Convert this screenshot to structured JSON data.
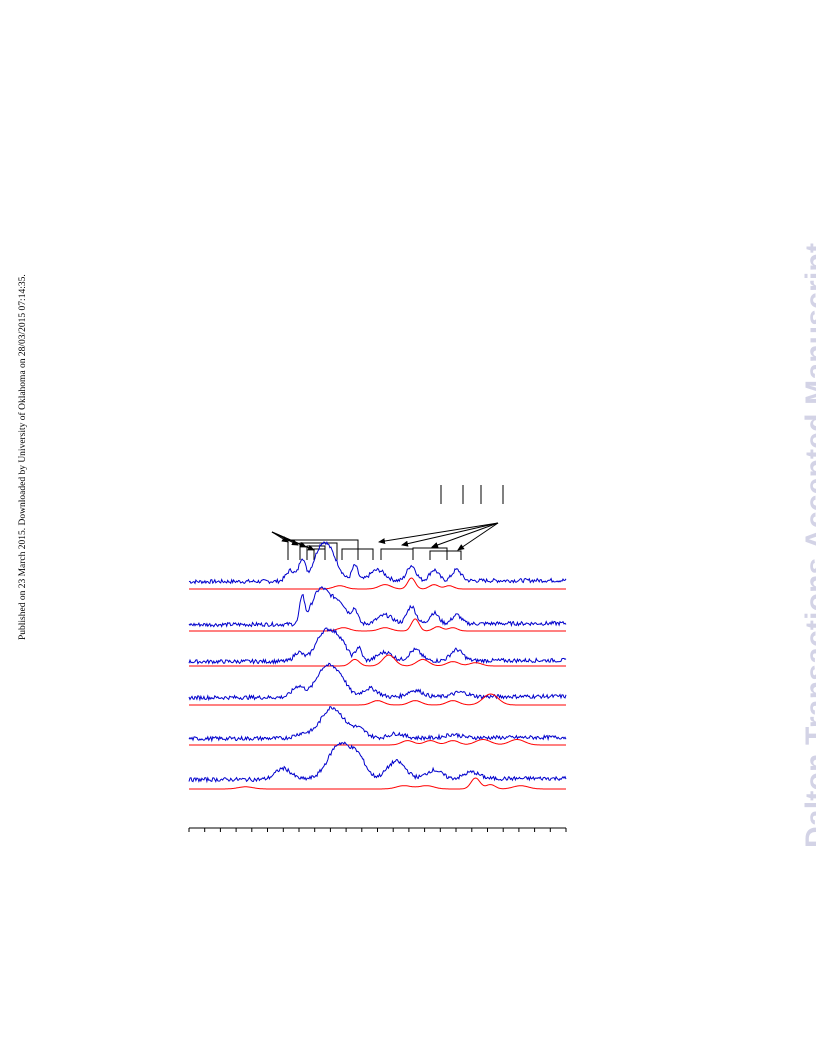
{
  "page": {
    "side_note": "Published on 23 March 2015. Downloaded by University of Oklahoma on 28/03/2015 07:14:35.",
    "watermark": "Dalton Transactions Accepted Manuscript"
  },
  "chart_data": {
    "type": "line",
    "description_of_traces": "stacked EPR-style spectra, experimental (blue) and simulated (red), six pairs",
    "colors": {
      "experimental": "#0000cc",
      "simulated": "#ff0000",
      "axis": "#000000"
    },
    "x_tick_count": 25,
    "tick_labels": [],
    "xlabel": "",
    "ylabel": "",
    "series": [
      {
        "kind": "experimental",
        "peaks": [
          [
            0.27,
            0.5,
            0.006
          ],
          [
            0.3,
            1.0,
            0.004
          ],
          [
            0.35,
            1.4,
            0.01
          ],
          [
            0.38,
            0.9,
            0.01
          ],
          [
            0.44,
            0.7,
            0.004
          ],
          [
            0.5,
            0.5,
            0.01
          ],
          [
            0.59,
            0.7,
            0.006
          ],
          [
            0.65,
            0.5,
            0.006
          ],
          [
            0.71,
            0.5,
            0.006
          ]
        ]
      },
      {
        "kind": "simulated",
        "peaks": [
          [
            0.4,
            0.15,
            0.008
          ],
          [
            0.52,
            0.2,
            0.008
          ],
          [
            0.59,
            0.5,
            0.005
          ],
          [
            0.65,
            0.2,
            0.006
          ],
          [
            0.69,
            0.15,
            0.006
          ]
        ]
      },
      {
        "kind": "experimental",
        "peaks": [
          [
            0.3,
            1.2,
            0.003
          ],
          [
            0.35,
            1.6,
            0.012
          ],
          [
            0.4,
            0.9,
            0.01
          ],
          [
            0.44,
            0.6,
            0.004
          ],
          [
            0.52,
            0.4,
            0.01
          ],
          [
            0.59,
            0.8,
            0.006
          ],
          [
            0.65,
            0.5,
            0.006
          ],
          [
            0.71,
            0.4,
            0.006
          ]
        ]
      },
      {
        "kind": "simulated",
        "peaks": [
          [
            0.41,
            0.15,
            0.008
          ],
          [
            0.52,
            0.15,
            0.008
          ],
          [
            0.6,
            0.55,
            0.005
          ],
          [
            0.66,
            0.2,
            0.006
          ],
          [
            0.7,
            0.15,
            0.006
          ]
        ]
      },
      {
        "kind": "experimental",
        "peaks": [
          [
            0.29,
            0.4,
            0.006
          ],
          [
            0.36,
            1.3,
            0.012
          ],
          [
            0.4,
            0.8,
            0.01
          ],
          [
            0.45,
            0.6,
            0.004
          ],
          [
            0.52,
            0.4,
            0.01
          ],
          [
            0.6,
            0.5,
            0.008
          ],
          [
            0.71,
            0.5,
            0.008
          ]
        ]
      },
      {
        "kind": "simulated",
        "peaks": [
          [
            0.44,
            0.3,
            0.006
          ],
          [
            0.53,
            0.5,
            0.008
          ],
          [
            0.62,
            0.3,
            0.008
          ],
          [
            0.7,
            0.2,
            0.008
          ],
          [
            0.76,
            0.15,
            0.008
          ]
        ]
      },
      {
        "kind": "experimental",
        "peaks": [
          [
            0.29,
            0.5,
            0.008
          ],
          [
            0.36,
            1.3,
            0.012
          ],
          [
            0.4,
            0.8,
            0.01
          ],
          [
            0.48,
            0.4,
            0.01
          ],
          [
            0.6,
            0.3,
            0.01
          ],
          [
            0.72,
            0.2,
            0.01
          ]
        ]
      },
      {
        "kind": "simulated",
        "peaks": [
          [
            0.5,
            0.2,
            0.008
          ],
          [
            0.6,
            0.2,
            0.008
          ],
          [
            0.7,
            0.2,
            0.008
          ],
          [
            0.8,
            0.5,
            0.01
          ]
        ]
      },
      {
        "kind": "experimental",
        "peaks": [
          [
            0.3,
            0.2,
            0.01
          ],
          [
            0.38,
            1.4,
            0.015
          ],
          [
            0.45,
            0.4,
            0.01
          ],
          [
            0.55,
            0.2,
            0.01
          ],
          [
            0.7,
            0.15,
            0.01
          ]
        ]
      },
      {
        "kind": "simulated",
        "peaks": [
          [
            0.58,
            0.2,
            0.008
          ],
          [
            0.64,
            0.2,
            0.008
          ],
          [
            0.7,
            0.2,
            0.008
          ],
          [
            0.78,
            0.25,
            0.01
          ],
          [
            0.87,
            0.25,
            0.01
          ]
        ]
      },
      {
        "kind": "experimental",
        "peaks": [
          [
            0.25,
            0.5,
            0.01
          ],
          [
            0.4,
            1.6,
            0.015
          ],
          [
            0.45,
            0.8,
            0.01
          ],
          [
            0.55,
            0.8,
            0.012
          ],
          [
            0.65,
            0.4,
            0.01
          ],
          [
            0.75,
            0.3,
            0.01
          ]
        ]
      },
      {
        "kind": "simulated",
        "peaks": [
          [
            0.15,
            0.1,
            0.01
          ],
          [
            0.57,
            0.15,
            0.01
          ],
          [
            0.63,
            0.15,
            0.01
          ],
          [
            0.76,
            0.5,
            0.006
          ],
          [
            0.8,
            0.2,
            0.006
          ],
          [
            0.88,
            0.15,
            0.01
          ]
        ]
      }
    ]
  }
}
